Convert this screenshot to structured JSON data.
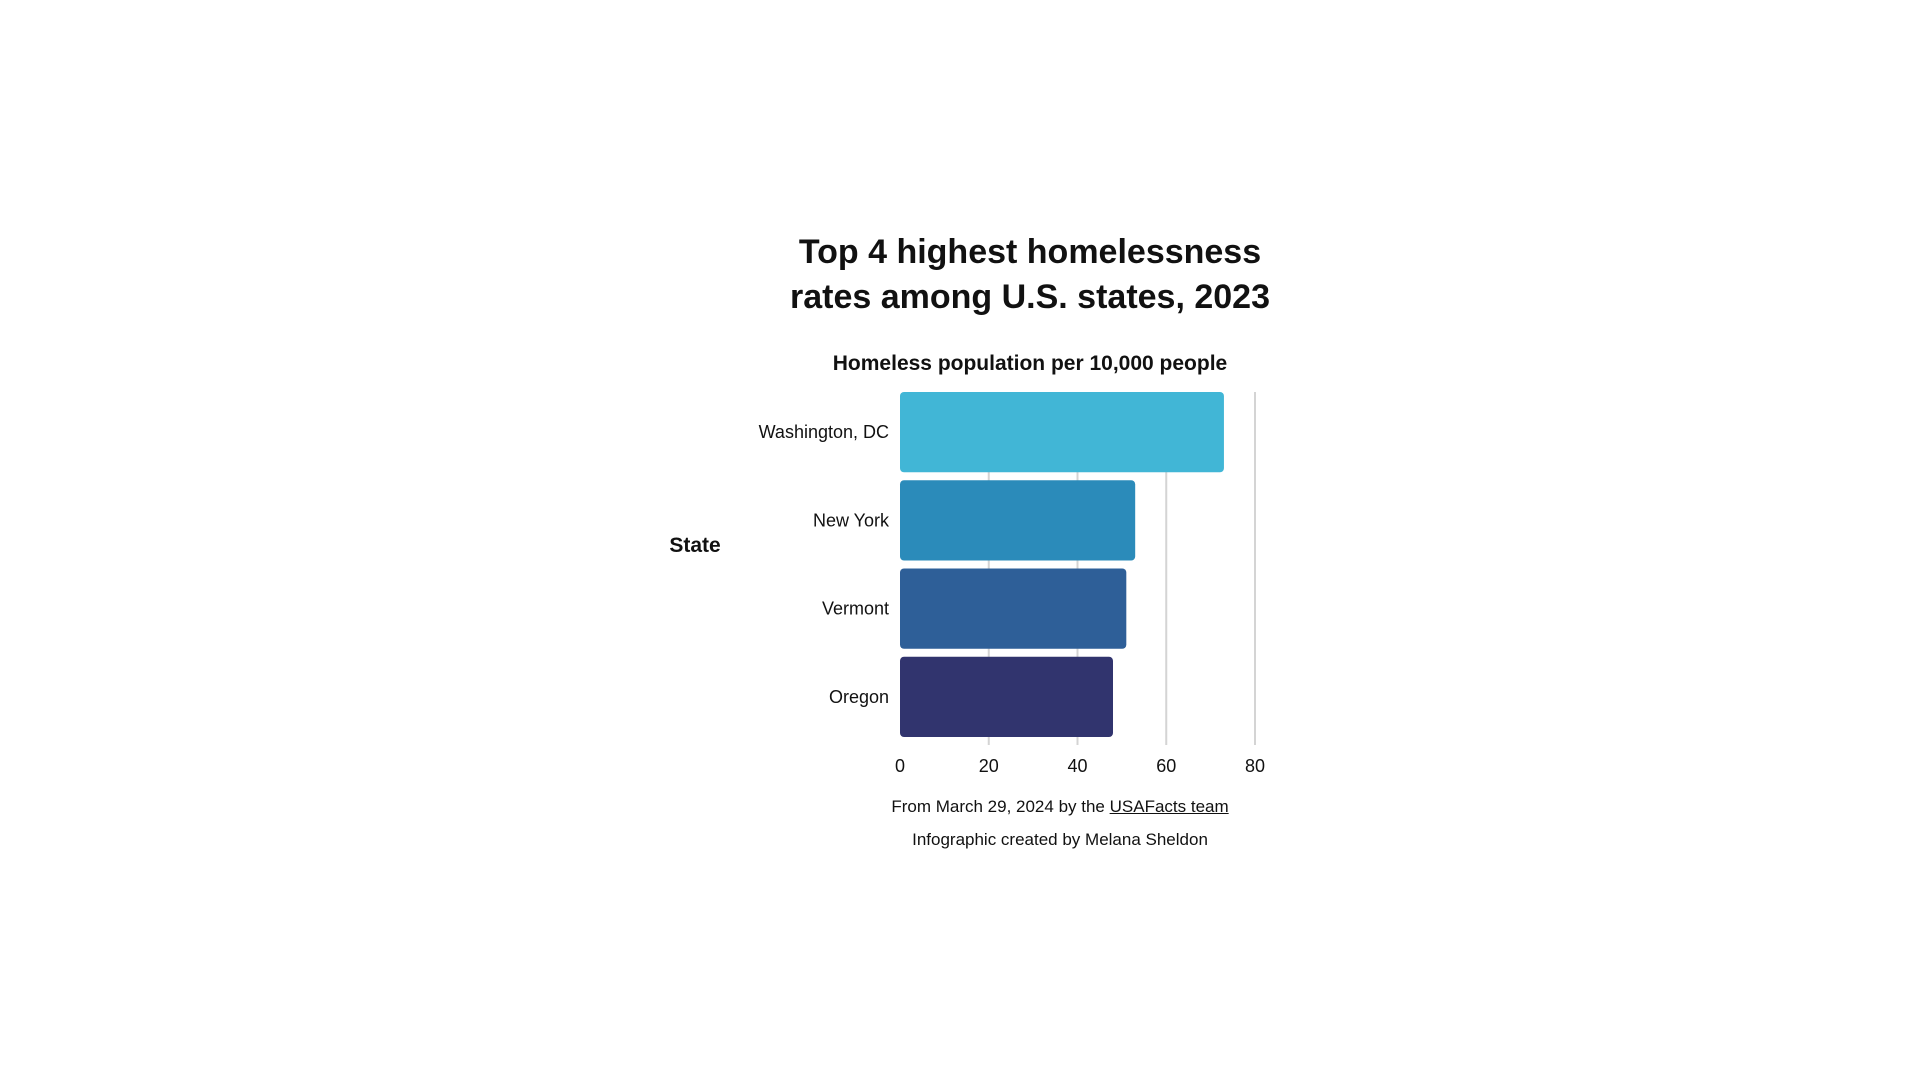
{
  "chart_data": {
    "type": "bar",
    "orientation": "horizontal",
    "title_lines": [
      "Top 4 highest homelessness",
      "rates among U.S. states, 2023"
    ],
    "subtitle": "Homeless population per 10,000 people",
    "ylabel": "State",
    "xlabel": "",
    "categories": [
      "Washington, DC",
      "New York",
      "Vermont",
      "Oregon"
    ],
    "values": [
      73,
      53,
      51,
      48
    ],
    "colors": [
      "#41b6d6",
      "#2b8bba",
      "#2e5f98",
      "#31346e"
    ],
    "xlim": [
      0,
      80
    ],
    "xticks": [
      "0",
      "20",
      "40",
      "60",
      "80"
    ],
    "grid": true,
    "legend": "none"
  },
  "footer": {
    "source_prefix": "From March 29, 2024 by the ",
    "source_link": "USAFacts team",
    "credit": "Infographic created by Melana Sheldon"
  }
}
